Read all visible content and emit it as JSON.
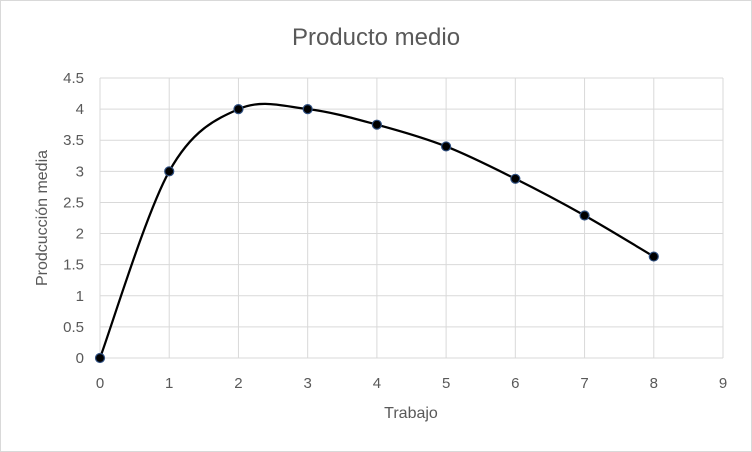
{
  "chart_data": {
    "type": "scatter",
    "title": "Producto medio",
    "xlabel": "Trabajo",
    "ylabel": "Prodcucción media",
    "xlim": [
      0,
      9
    ],
    "ylim": [
      0,
      4.5
    ],
    "x_ticks": [
      "0",
      "1",
      "2",
      "3",
      "4",
      "5",
      "6",
      "7",
      "8",
      "9"
    ],
    "y_ticks": [
      "0",
      "0.5",
      "1",
      "1.5",
      "2",
      "2.5",
      "3",
      "3.5",
      "4",
      "4.5"
    ],
    "grid": true,
    "smooth_line": true,
    "series": [
      {
        "x": [
          0,
          1,
          2,
          3,
          4,
          5,
          6,
          7,
          8
        ],
        "y": [
          0,
          3,
          4,
          4,
          3.75,
          3.4,
          2.88,
          2.29,
          1.63
        ]
      }
    ],
    "colors": {
      "line": "#000000",
      "marker_fill": "#000000",
      "marker_edge": "#2f4f80",
      "grid": "#d9d9d9",
      "text": "#595959"
    }
  }
}
